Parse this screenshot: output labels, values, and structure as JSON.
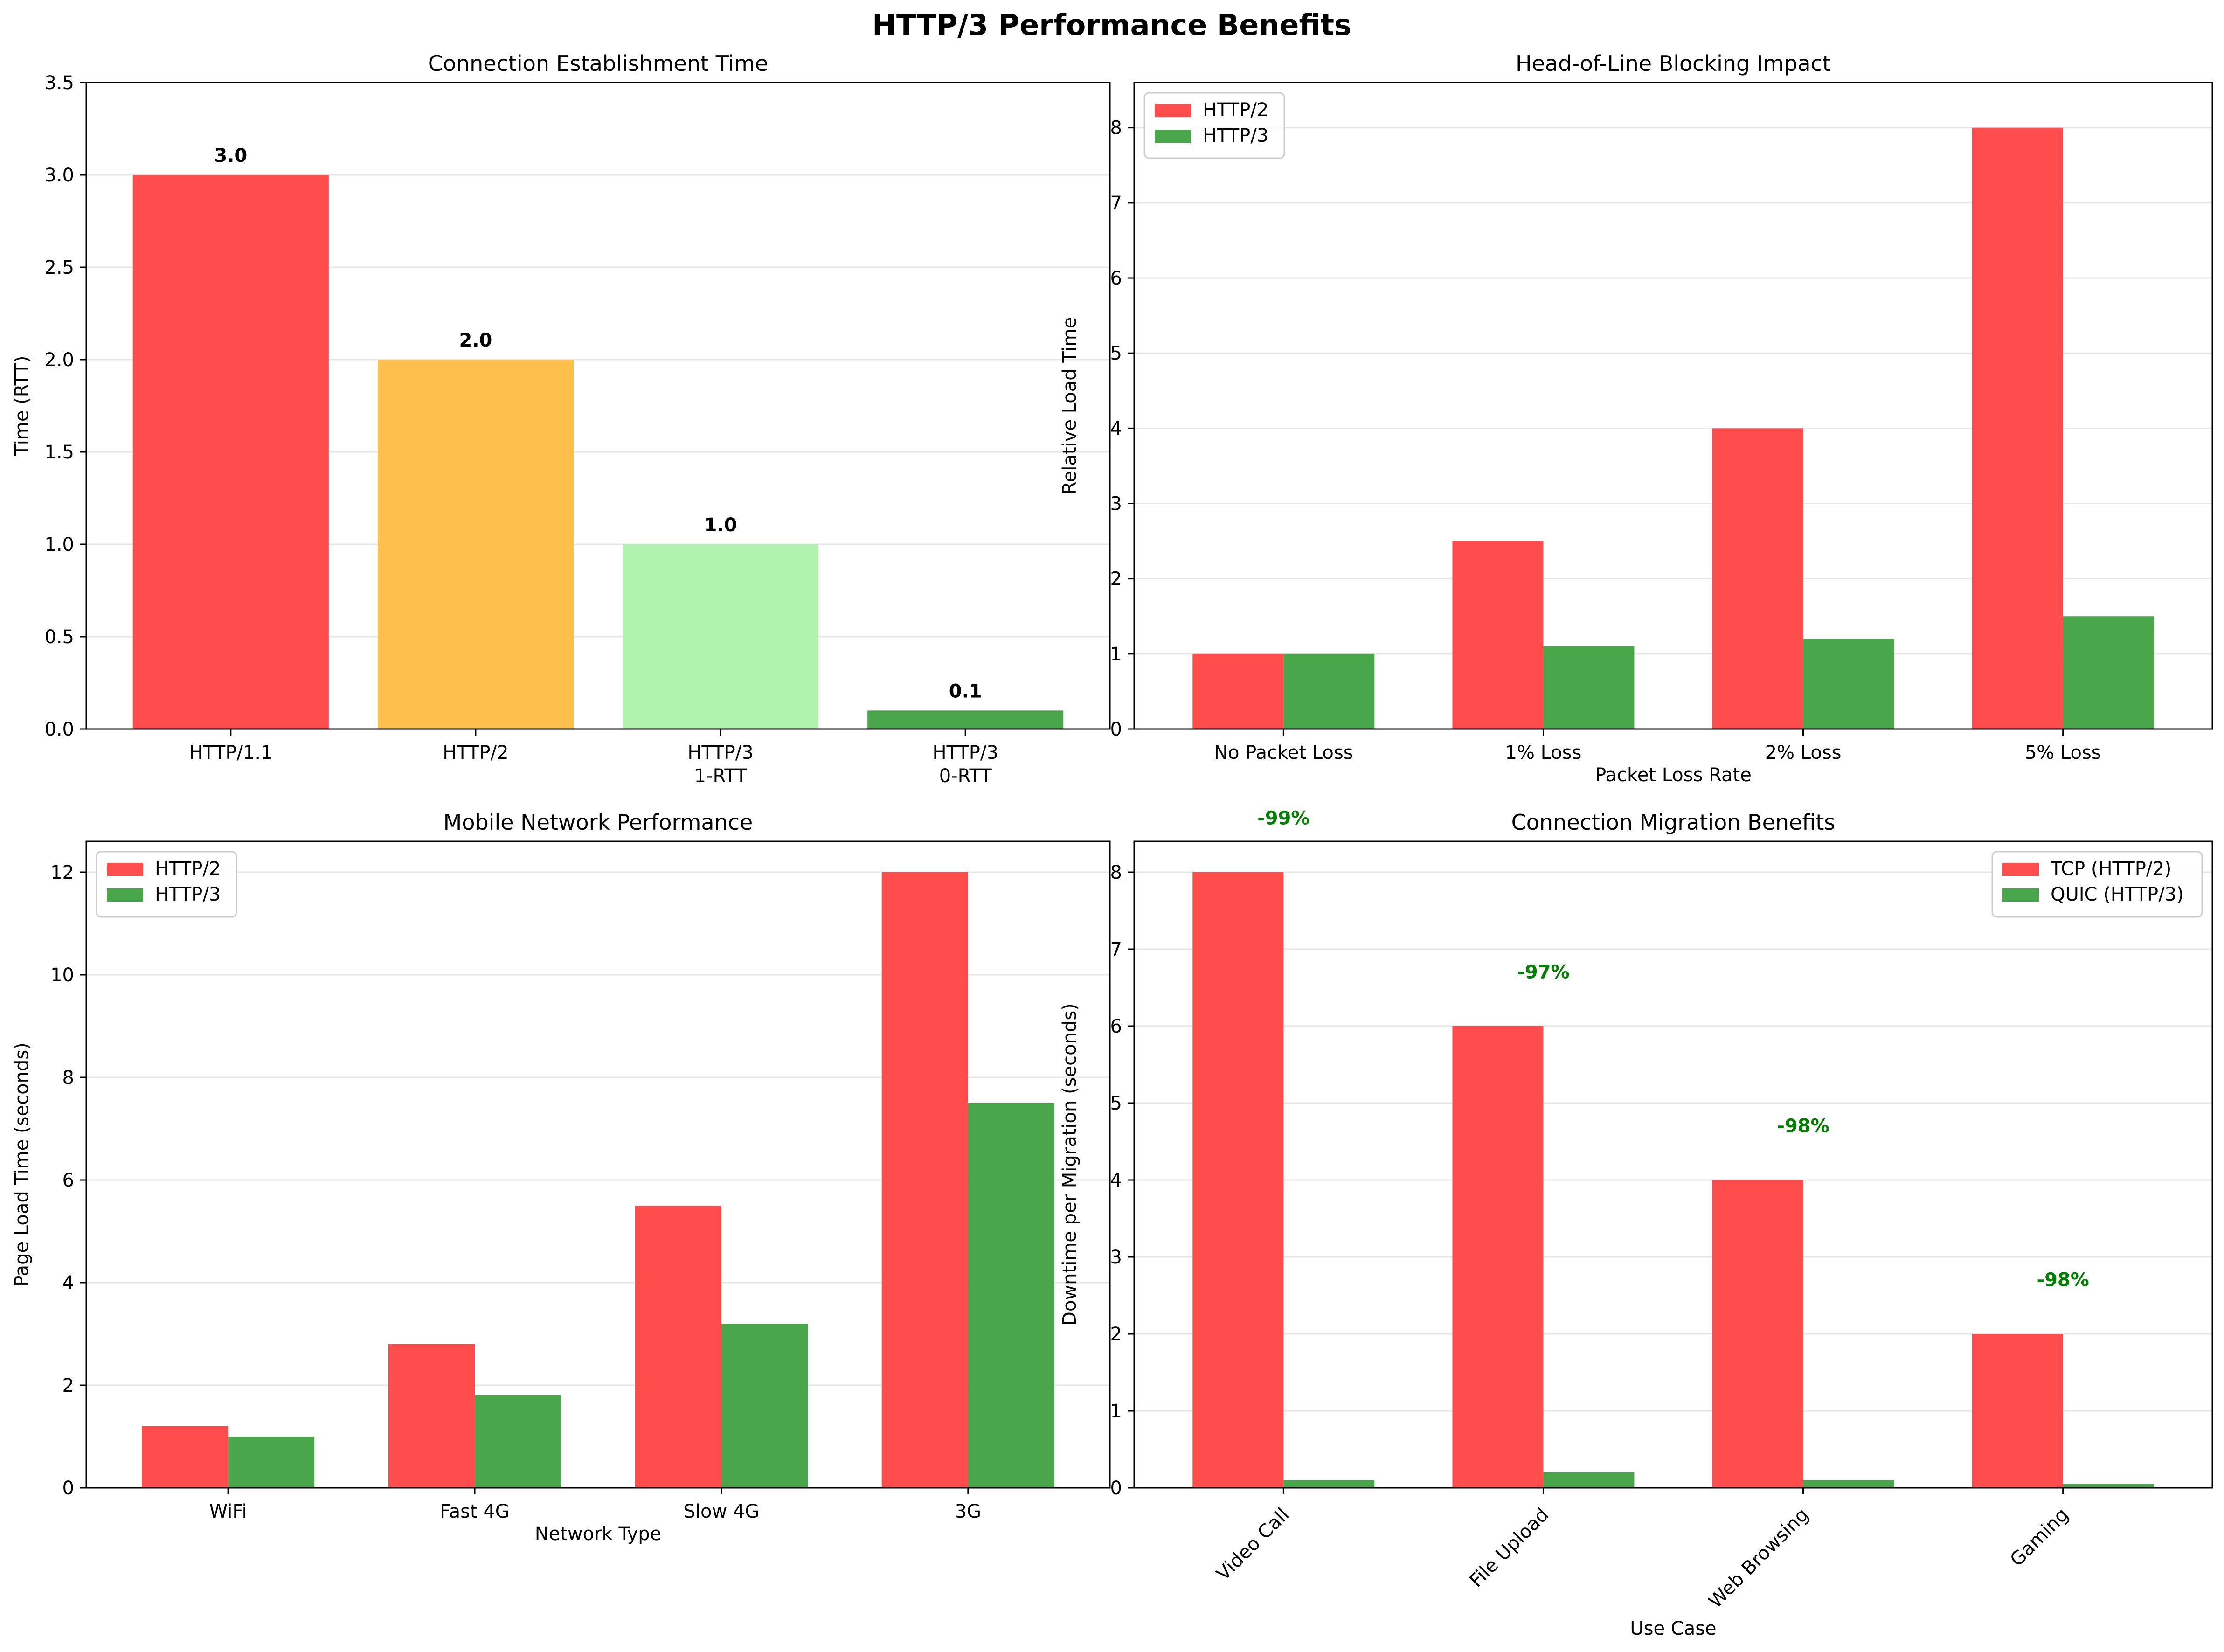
{
  "figure": {
    "title": "HTTP/3 Performance Benefits"
  },
  "colors": {
    "red": "#ff4d4d",
    "orange": "#ffbf4d",
    "lightgreen": "#b0f2ae",
    "green": "#4aa64a",
    "annotation_green": "#008000",
    "grid": "#e6e6e6",
    "axis": "#000000"
  },
  "chart_data": [
    {
      "type": "bar",
      "title": "Connection Establishment Time",
      "xlabel": "",
      "ylabel": "Time (RTT)",
      "categories": [
        "HTTP/1.1",
        "HTTP/2",
        "HTTP/3\n1-RTT",
        "HTTP/3\n0-RTT"
      ],
      "values": [
        3.0,
        2.0,
        1.0,
        0.1
      ],
      "bar_colors": [
        "red",
        "orange",
        "lightgreen",
        "green"
      ],
      "value_labels": [
        "3.0",
        "2.0",
        "1.0",
        "0.1"
      ],
      "ylim": [
        0,
        3.5
      ],
      "yticks": [
        0.0,
        0.5,
        1.0,
        1.5,
        2.0,
        2.5,
        3.0,
        3.5
      ],
      "ytick_labels": [
        "0.0",
        "0.5",
        "1.0",
        "1.5",
        "2.0",
        "2.5",
        "3.0",
        "3.5"
      ],
      "grid": "y",
      "legend": "none"
    },
    {
      "type": "bar",
      "title": "Head-of-Line Blocking Impact",
      "xlabel": "Packet Loss Rate",
      "ylabel": "Relative Load Time",
      "categories": [
        "No Packet Loss",
        "1% Loss",
        "2% Loss",
        "5% Loss"
      ],
      "series": [
        {
          "name": "HTTP/2",
          "color": "red",
          "values": [
            1.0,
            2.5,
            4.0,
            8.0
          ]
        },
        {
          "name": "HTTP/3",
          "color": "green",
          "values": [
            1.0,
            1.1,
            1.2,
            1.5
          ]
        }
      ],
      "ylim": [
        0,
        8.6
      ],
      "yticks": [
        0,
        1,
        2,
        3,
        4,
        5,
        6,
        7,
        8
      ],
      "ytick_labels": [
        "0",
        "1",
        "2",
        "3",
        "4",
        "5",
        "6",
        "7",
        "8"
      ],
      "grid": "y",
      "legend": "upper-left"
    },
    {
      "type": "bar",
      "title": "Mobile Network Performance",
      "xlabel": "Network Type",
      "ylabel": "Page Load Time (seconds)",
      "categories": [
        "WiFi",
        "Fast 4G",
        "Slow 4G",
        "3G"
      ],
      "series": [
        {
          "name": "HTTP/2",
          "color": "red",
          "values": [
            1.2,
            2.8,
            5.5,
            12.0
          ]
        },
        {
          "name": "HTTP/3",
          "color": "green",
          "values": [
            1.0,
            1.8,
            3.2,
            7.5
          ]
        }
      ],
      "ylim": [
        0,
        12.6
      ],
      "yticks": [
        0,
        2,
        4,
        6,
        8,
        10,
        12
      ],
      "ytick_labels": [
        "0",
        "2",
        "4",
        "6",
        "8",
        "10",
        "12"
      ],
      "grid": "y",
      "legend": "upper-left"
    },
    {
      "type": "bar",
      "title": "Connection Migration Benefits",
      "xlabel": "Use Case",
      "ylabel": "Downtime per Migration (seconds)",
      "categories": [
        "Video Call",
        "File Upload",
        "Web Browsing",
        "Gaming"
      ],
      "series": [
        {
          "name": "TCP (HTTP/2)",
          "color": "red",
          "values": [
            8.0,
            6.0,
            4.0,
            2.0
          ]
        },
        {
          "name": "QUIC (HTTP/3)",
          "color": "green",
          "values": [
            0.1,
            0.2,
            0.1,
            0.05
          ]
        }
      ],
      "annotations": [
        "-99%",
        "-97%",
        "-98%",
        "-98%"
      ],
      "ylim": [
        0,
        8.4
      ],
      "yticks": [
        0,
        1,
        2,
        3,
        4,
        5,
        6,
        7,
        8
      ],
      "ytick_labels": [
        "0",
        "1",
        "2",
        "3",
        "4",
        "5",
        "6",
        "7",
        "8"
      ],
      "xtick_rotation": 45,
      "grid": "y",
      "legend": "upper-right"
    }
  ]
}
